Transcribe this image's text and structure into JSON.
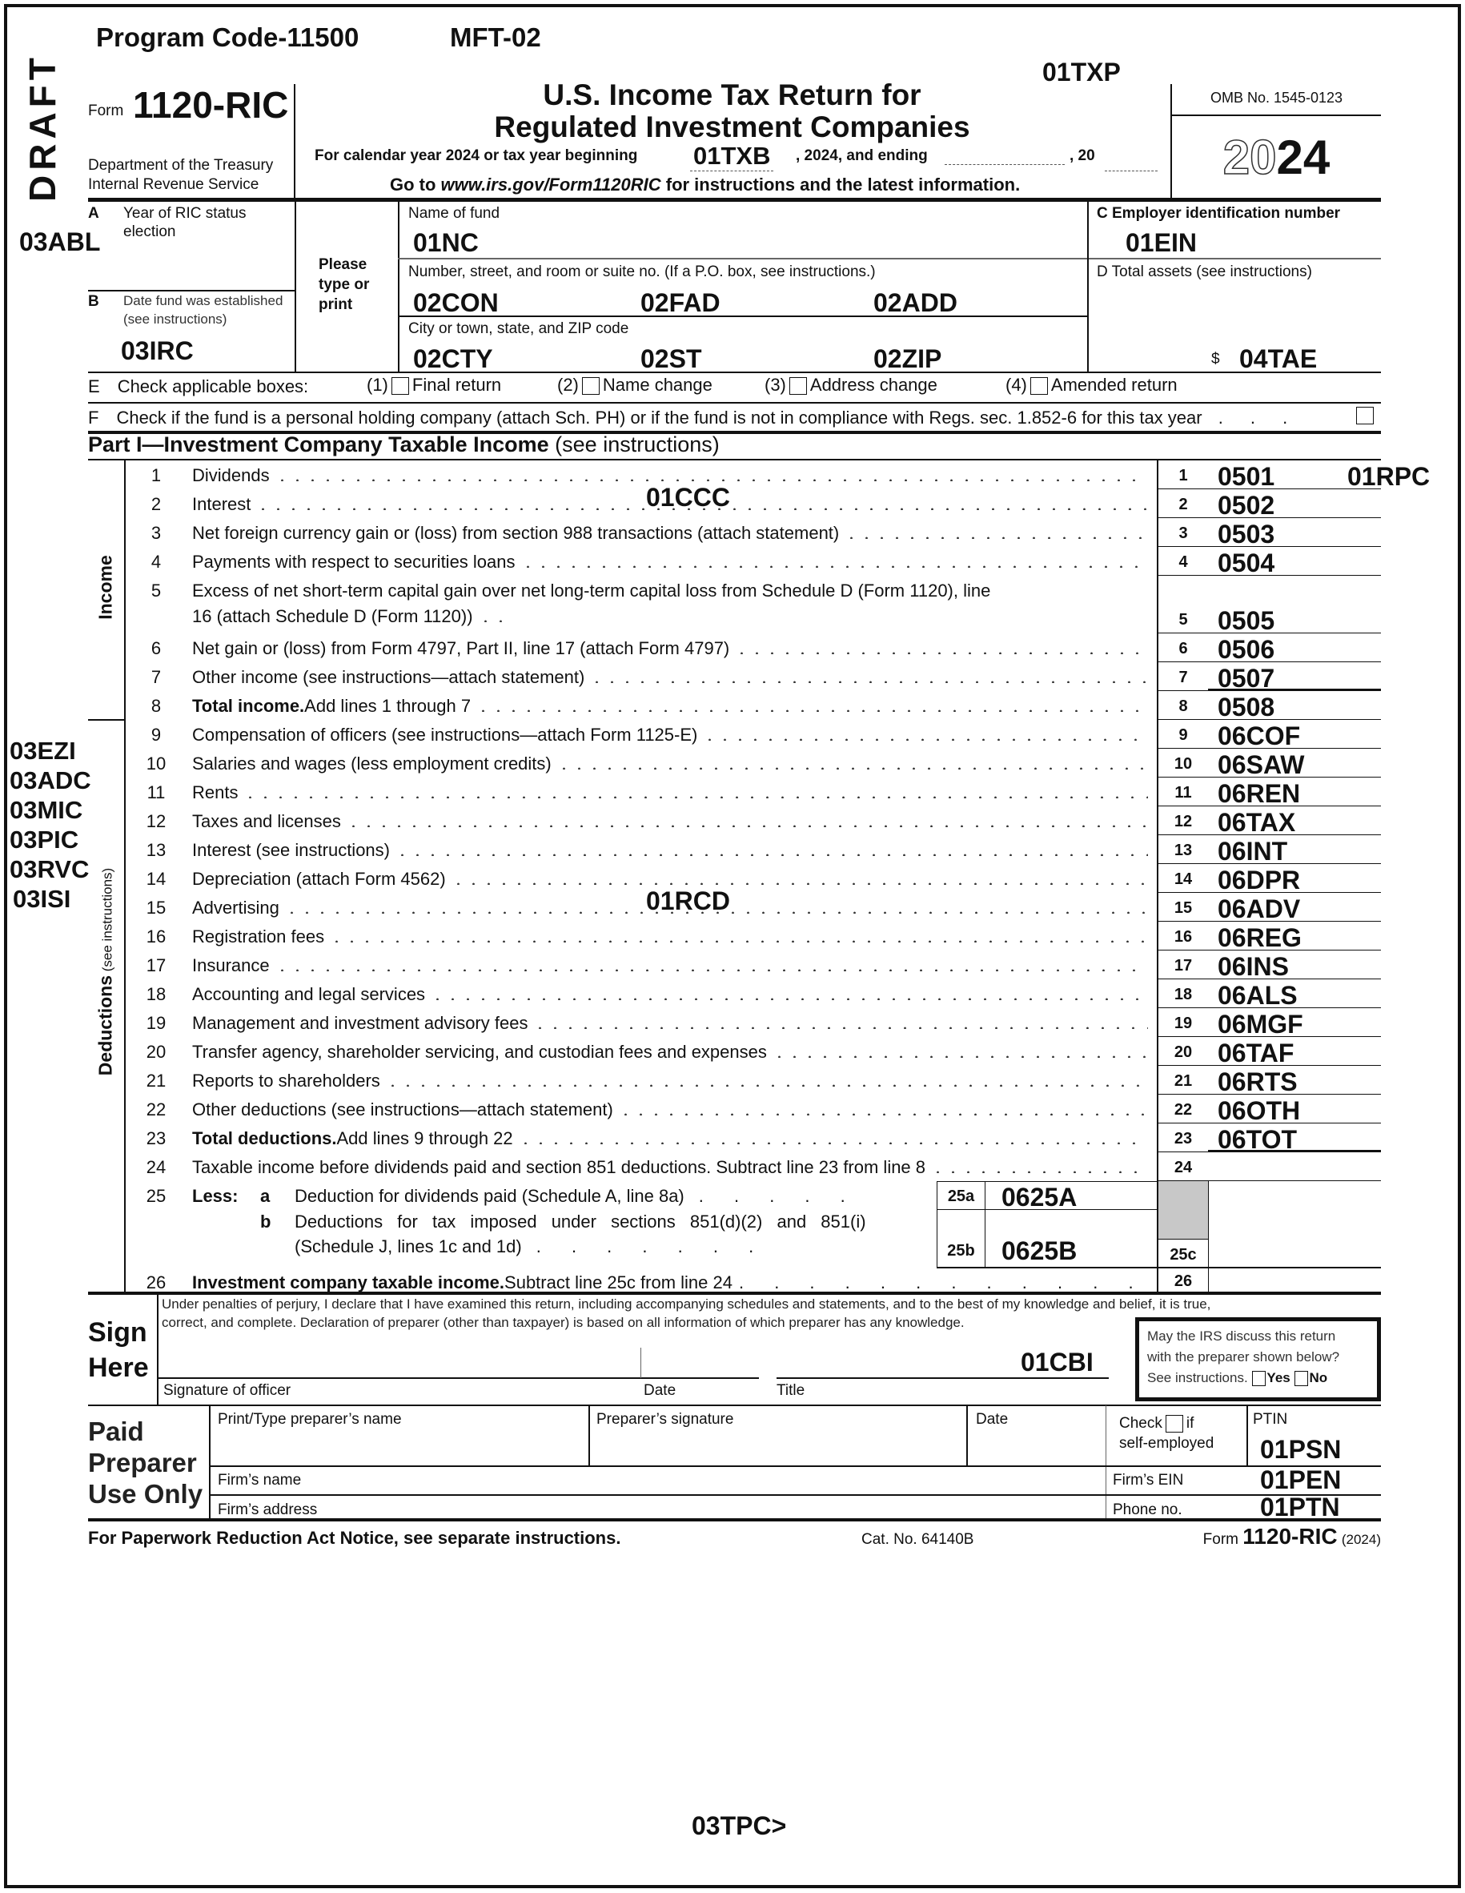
{
  "program_line": {
    "program_code": "Program Code-11500",
    "mft": "MFT-02"
  },
  "draft": "DRAFT",
  "codes": {
    "txp": "01TXP",
    "abl": "03ABL",
    "rpc": "01RPC",
    "ccc": "01CCC",
    "rcd": "01RCD",
    "tpc": "03TPC>",
    "left_margin": [
      "03EZI",
      "03ADC",
      "03MIC",
      "03PIC",
      "03RVC",
      "03ISI"
    ]
  },
  "header": {
    "form_word": "Form",
    "form_number": "1120-RIC",
    "dept1": "Department of the Treasury",
    "dept2": "Internal Revenue Service",
    "title1": "U.S. Income Tax Return for",
    "title2": "Regulated Investment Companies",
    "calendar_text": "For calendar year 2024 or tax year beginning",
    "tax_year_begin": "01TXB",
    "and_ending": ", 2024, and ending",
    "comma20": ", 20",
    "goto_pre": "Go to ",
    "goto_url": "www.irs.gov/Form1120RIC",
    "goto_post": " for instructions and the latest information.",
    "omb": "OMB No. 1545-0123",
    "year_outline": "20",
    "year_bold": "24"
  },
  "entity": {
    "a_letter": "A",
    "a_label1": "Year of RIC status",
    "a_label2": "election",
    "b_letter": "B",
    "b_label1": "Date fund was established",
    "b_label2": "(see instructions)",
    "irc": "03IRC",
    "please1": "Please",
    "please2": "type or",
    "please3": "print",
    "name_label": "Name of fund",
    "name": "01NC",
    "street_label": "Number, street, and room or suite no. (If a P.O. box, see instructions.)",
    "street1": "02CON",
    "street2": "02FAD",
    "street3": "02ADD",
    "city_label": "City or town, state, and ZIP code",
    "city": "02CTY",
    "state": "02ST",
    "zip": "02ZIP",
    "c_label": "C  Employer identification number",
    "ein": "01EIN",
    "d_label": "D  Total assets (see instructions)",
    "dollar": "$",
    "total_assets": "04TAE"
  },
  "row_e": {
    "letter": "E",
    "label": "Check applicable boxes:",
    "items": [
      {
        "n": "(1)",
        "label": "Final return"
      },
      {
        "n": "(2)",
        "label": "Name change"
      },
      {
        "n": "(3)",
        "label": "Address change"
      },
      {
        "n": "(4)",
        "label": "Amended return"
      }
    ]
  },
  "row_f": {
    "letter": "F",
    "label": "Check if the fund is a personal holding company (attach Sch. PH) or if the fund is not in compliance with Regs. sec. 1.852-6 for this tax year"
  },
  "part1": {
    "title": "Part I—Investment Company Taxable Income",
    "sub": " (see instructions)",
    "income_label": "Income",
    "deductions_label": "Deductions",
    "deductions_sub": " (see instructions)"
  },
  "lines": [
    {
      "num": "1",
      "bold": "",
      "text": "Dividends",
      "box": "1",
      "amount": "0501"
    },
    {
      "num": "2",
      "bold": "",
      "text": "Interest",
      "box": "2",
      "amount": "0502"
    },
    {
      "num": "3",
      "bold": "",
      "text": "Net foreign currency gain or (loss) from section 988 transactions (attach statement)",
      "box": "3",
      "amount": "0503"
    },
    {
      "num": "4",
      "bold": "",
      "text": "Payments with respect to securities loans",
      "box": "4",
      "amount": "0504"
    },
    {
      "num": "5",
      "bold": "",
      "text": "Excess of net short-term capital gain over net long-term capital loss from Schedule D (Form 1120), line",
      "text2": "16 (attach Schedule D (Form 1120))",
      "box": "5",
      "amount": "0505"
    },
    {
      "num": "6",
      "bold": "",
      "text": "Net gain or (loss) from Form 4797, Part II, line 17 (attach Form 4797)",
      "box": "6",
      "amount": "0506"
    },
    {
      "num": "7",
      "bold": "",
      "text": "Other income (see instructions—attach statement)",
      "box": "7",
      "amount": "0507"
    },
    {
      "num": "8",
      "bold": "Total income.",
      "text": " Add lines 1 through 7",
      "box": "8",
      "amount": "0508"
    },
    {
      "num": "9",
      "bold": "",
      "text": "Compensation of officers (see instructions—attach Form 1125-E)",
      "box": "9",
      "amount": "06COF"
    },
    {
      "num": "10",
      "bold": "",
      "text": "Salaries and wages (less employment credits)",
      "box": "10",
      "amount": "06SAW"
    },
    {
      "num": "11",
      "bold": "",
      "text": "Rents",
      "box": "11",
      "amount": "06REN"
    },
    {
      "num": "12",
      "bold": "",
      "text": "Taxes and licenses",
      "box": "12",
      "amount": "06TAX"
    },
    {
      "num": "13",
      "bold": "",
      "text": "Interest (see instructions)",
      "box": "13",
      "amount": "06INT"
    },
    {
      "num": "14",
      "bold": "",
      "text": "Depreciation (attach Form 4562)",
      "box": "14",
      "amount": "06DPR"
    },
    {
      "num": "15",
      "bold": "",
      "text": "Advertising",
      "box": "15",
      "amount": "06ADV"
    },
    {
      "num": "16",
      "bold": "",
      "text": "Registration fees",
      "box": "16",
      "amount": "06REG"
    },
    {
      "num": "17",
      "bold": "",
      "text": "Insurance",
      "box": "17",
      "amount": "06INS"
    },
    {
      "num": "18",
      "bold": "",
      "text": "Accounting and legal services",
      "box": "18",
      "amount": "06ALS"
    },
    {
      "num": "19",
      "bold": "",
      "text": "Management and investment advisory fees",
      "box": "19",
      "amount": "06MGF"
    },
    {
      "num": "20",
      "bold": "",
      "text": "Transfer agency, shareholder servicing, and custodian fees and expenses",
      "box": "20",
      "amount": "06TAF"
    },
    {
      "num": "21",
      "bold": "",
      "text": "Reports to shareholders",
      "box": "21",
      "amount": "06RTS"
    },
    {
      "num": "22",
      "bold": "",
      "text": "Other deductions (see instructions—attach statement)",
      "box": "22",
      "amount": "06OTH"
    },
    {
      "num": "23",
      "bold": "Total deductions.",
      "text": " Add lines 9 through 22",
      "box": "23",
      "amount": "06TOT"
    },
    {
      "num": "24",
      "bold": "",
      "text": "Taxable income before dividends paid and section 851 deductions. Subtract line 23 from line 8",
      "box": "24",
      "amount": ""
    }
  ],
  "line25": {
    "num": "25",
    "less": "Less:",
    "a": "a",
    "a_text": "Deduction for dividends paid (Schedule A, line 8a)",
    "a_box": "25a",
    "a_amount": "0625A",
    "b": "b",
    "b_text1": "Deductions for tax imposed under sections 851(d)(2) and 851(i)",
    "b_text2": "(Schedule J, lines 1c and 1d)",
    "b_box": "25b",
    "b_amount": "0625B",
    "c_box": "25c"
  },
  "line26": {
    "num": "26",
    "bold": "Investment company taxable income.",
    "text": " Subtract line 25c from line 24",
    "box": "26"
  },
  "sign": {
    "title1": "Sign",
    "title2": "Here",
    "perjury1": "Under penalties of perjury, I declare that I have examined this return, including accompanying schedules and statements, and to the best of my knowledge and belief, it is true,",
    "perjury2": "correct, and complete. Declaration of preparer (other than taxpayer) is based on all information of which preparer has any knowledge.",
    "cbi": "01CBI",
    "sig_label": "Signature of officer",
    "date_label": "Date",
    "title_label": "Title",
    "discuss1": "May the IRS discuss this return",
    "discuss2": "with the preparer shown below?",
    "discuss3": "See instructions.",
    "yes": "Yes",
    "no": "No"
  },
  "preparer": {
    "t1": "Paid",
    "t2": "Preparer",
    "t3": "Use Only",
    "name_label": "Print/Type preparer’s name",
    "sig_label": "Preparer’s signature",
    "date_label": "Date",
    "check_label": "Check",
    "if": "if",
    "self_employed": "self-employed",
    "ptin_label": "PTIN",
    "ptin": "01PSN",
    "firm_name_label": "Firm’s name",
    "firm_ein_label": "Firm’s EIN",
    "firm_ein": "01PEN",
    "firm_address_label": "Firm’s address",
    "phone_label": "Phone no.",
    "phone": "01PTN"
  },
  "footer": {
    "paperwork": "For Paperwork Reduction Act Notice, see separate instructions.",
    "cat": "Cat. No. 64140B",
    "form_word": "Form",
    "form_number": "1120-RIC",
    "year": "(2024)"
  }
}
